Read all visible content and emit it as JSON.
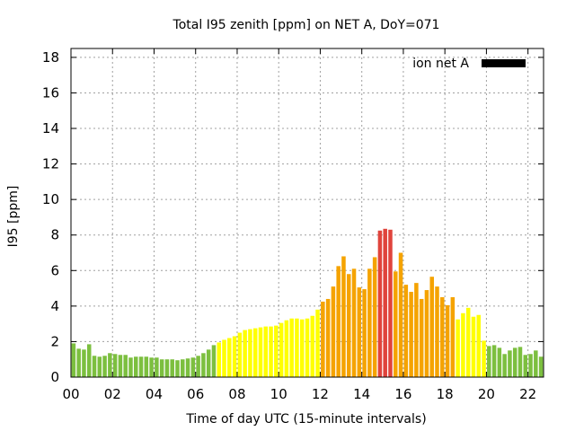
{
  "chart_data": {
    "type": "bar",
    "title": "Total I95 zenith [ppm] on NET A, DoY=071",
    "xlabel": "Time of day UTC (15-minute intervals)",
    "ylabel": "I95 [ppm]",
    "xlim": [
      0,
      22.75
    ],
    "ylim": [
      0,
      18.5
    ],
    "yticks": [
      "0",
      "2",
      "4",
      "6",
      "8",
      "10",
      "12",
      "14",
      "16",
      "18"
    ],
    "xticks": [
      "00",
      "02",
      "04",
      "06",
      "08",
      "10",
      "12",
      "14",
      "16",
      "18",
      "20",
      "22"
    ],
    "grid": true,
    "legend": {
      "label": "ion net A",
      "color": "#000000",
      "position": "top-right"
    },
    "bin_hours": 0.25,
    "colors": {
      "green": "#7cbf3f",
      "yellow": "#ffff00",
      "orange": "#f5a300",
      "red": "#e0443c"
    },
    "values": [
      1.9,
      1.6,
      1.55,
      1.85,
      1.2,
      1.15,
      1.2,
      1.35,
      1.3,
      1.25,
      1.25,
      1.1,
      1.15,
      1.15,
      1.15,
      1.1,
      1.1,
      1.0,
      1.0,
      1.0,
      0.95,
      1.0,
      1.05,
      1.1,
      1.2,
      1.35,
      1.55,
      1.8,
      1.95,
      2.1,
      2.2,
      2.3,
      2.5,
      2.65,
      2.7,
      2.75,
      2.8,
      2.85,
      2.85,
      2.9,
      3.05,
      3.2,
      3.3,
      3.3,
      3.25,
      3.3,
      3.45,
      3.8,
      4.25,
      4.4,
      5.1,
      6.25,
      6.8,
      5.8,
      6.1,
      5.05,
      4.95,
      6.1,
      6.75,
      8.25,
      8.35,
      8.3,
      5.95,
      7.0,
      5.2,
      4.8,
      5.3,
      4.4,
      4.9,
      5.65,
      5.1,
      4.5,
      4.05,
      4.5,
      3.25,
      3.6,
      3.9,
      3.4,
      3.5,
      2.05,
      1.75,
      1.8,
      1.65,
      1.3,
      1.5,
      1.65,
      1.7,
      1.25,
      1.3,
      1.5,
      1.15,
      1.3
    ],
    "bar_colors": [
      "green",
      "green",
      "green",
      "green",
      "green",
      "green",
      "green",
      "green",
      "green",
      "green",
      "green",
      "green",
      "green",
      "green",
      "green",
      "green",
      "green",
      "green",
      "green",
      "green",
      "green",
      "green",
      "green",
      "green",
      "green",
      "green",
      "green",
      "green",
      "yellow",
      "yellow",
      "yellow",
      "yellow",
      "yellow",
      "yellow",
      "yellow",
      "yellow",
      "yellow",
      "yellow",
      "yellow",
      "yellow",
      "yellow",
      "yellow",
      "yellow",
      "yellow",
      "yellow",
      "yellow",
      "yellow",
      "yellow",
      "orange",
      "orange",
      "orange",
      "orange",
      "orange",
      "orange",
      "orange",
      "orange",
      "orange",
      "orange",
      "orange",
      "red",
      "red",
      "red",
      "orange",
      "orange",
      "orange",
      "orange",
      "orange",
      "orange",
      "orange",
      "orange",
      "orange",
      "orange",
      "orange",
      "orange",
      "yellow",
      "yellow",
      "yellow",
      "yellow",
      "yellow",
      "yellow",
      "green",
      "green",
      "green",
      "green",
      "green",
      "green",
      "green",
      "green",
      "green",
      "green",
      "green",
      "green"
    ]
  }
}
